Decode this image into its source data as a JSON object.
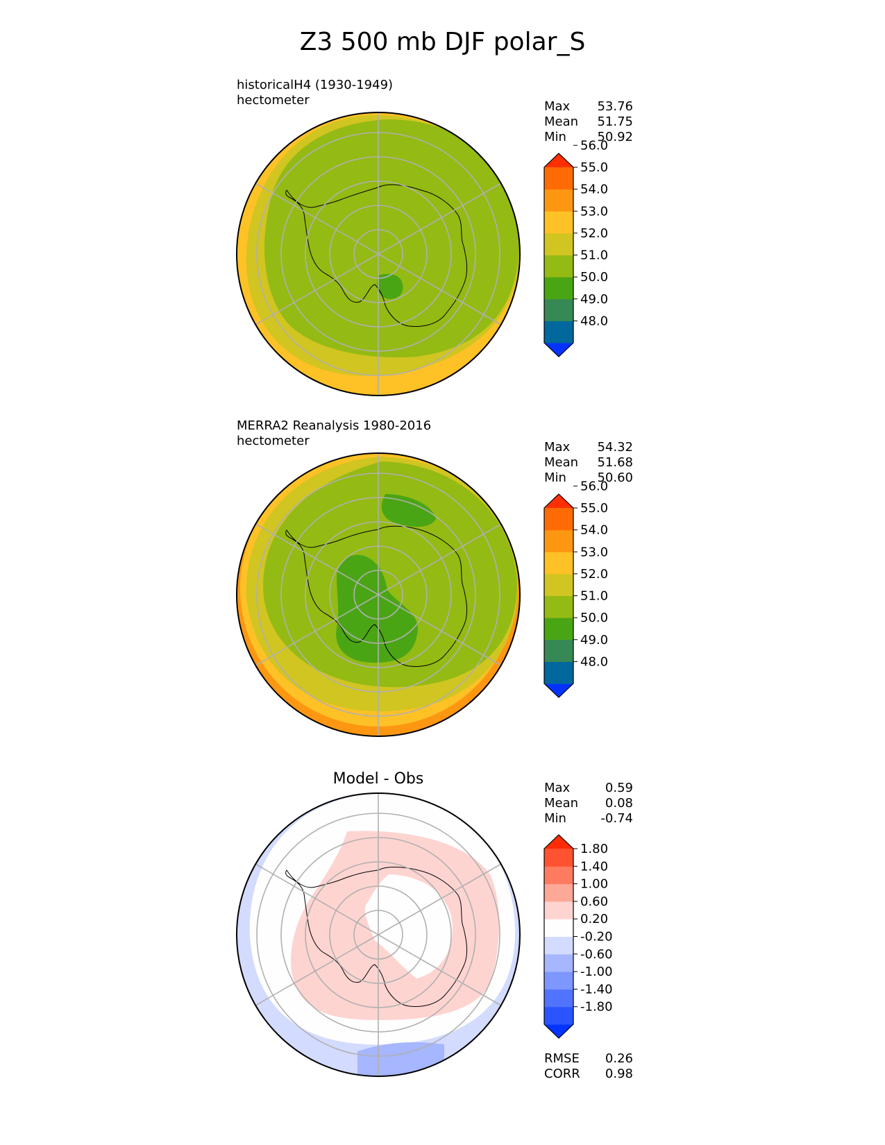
{
  "figure_title": "Z3 500 mb DJF polar_S",
  "panels": [
    {
      "id": "test",
      "title_lines": [
        "historicalH4 (1930-1949)",
        "hectometer"
      ],
      "stats": [
        {
          "label": "Max",
          "value": "53.76"
        },
        {
          "label": "Mean",
          "value": "51.75"
        },
        {
          "label": "Min",
          "value": "50.92"
        }
      ]
    },
    {
      "id": "ref",
      "title_lines": [
        "MERRA2 Reanalysis 1980-2016",
        "hectometer"
      ],
      "stats": [
        {
          "label": "Max",
          "value": "54.32"
        },
        {
          "label": "Mean",
          "value": "51.68"
        },
        {
          "label": "Min",
          "value": "50.60"
        }
      ]
    },
    {
      "id": "diff",
      "center_title": "Model - Obs",
      "stats": [
        {
          "label": "Max",
          "value": "0.59"
        },
        {
          "label": "Mean",
          "value": "0.08"
        },
        {
          "label": "Min",
          "value": "-0.74"
        }
      ],
      "metrics": [
        {
          "label": "RMSE",
          "value": "0.26"
        },
        {
          "label": "CORR",
          "value": "0.98"
        }
      ]
    }
  ],
  "chart_data": [
    {
      "type": "heatmap",
      "title": "historicalH4 (1930-1949)",
      "units": "hectometer",
      "projection": "south polar stereographic",
      "colorbar": {
        "ticks": [
          "48.0",
          "49.0",
          "50.0",
          "51.0",
          "52.0",
          "53.0",
          "54.0",
          "55.0",
          "56.0"
        ],
        "colors": [
          "#0433ff",
          "#00689d",
          "#368855",
          "#4aa515",
          "#94ba14",
          "#d1c521",
          "#fec126",
          "#fd9712",
          "#fe6b04",
          "#ff2f03"
        ],
        "extend": "both"
      },
      "field_levels_center_to_edge": [
        {
          "from": 51,
          "to": 52,
          "note": "small region near pole"
        },
        {
          "from": 52,
          "to": 53
        },
        {
          "from": 53,
          "to": 54
        }
      ],
      "stats": {
        "max": 53.76,
        "mean": 51.75,
        "min": 50.92
      }
    },
    {
      "type": "heatmap",
      "title": "MERRA2 Reanalysis 1980-2016",
      "units": "hectometer",
      "projection": "south polar stereographic",
      "colorbar": {
        "ticks": [
          "48.0",
          "49.0",
          "50.0",
          "51.0",
          "52.0",
          "53.0",
          "54.0",
          "55.0",
          "56.0"
        ],
        "colors": [
          "#0433ff",
          "#00689d",
          "#368855",
          "#4aa515",
          "#94ba14",
          "#d1c521",
          "#fec126",
          "#fd9712",
          "#fe6b04",
          "#ff2f03"
        ],
        "extend": "both"
      },
      "field_levels_center_to_edge": [
        {
          "from": 51,
          "to": 52
        },
        {
          "from": 52,
          "to": 53
        },
        {
          "from": 53,
          "to": 54
        },
        {
          "from": 54,
          "to": 55
        }
      ],
      "stats": {
        "max": 54.32,
        "mean": 51.68,
        "min": 50.6
      }
    },
    {
      "type": "heatmap",
      "title": "Model - Obs",
      "projection": "south polar stereographic",
      "colorbar": {
        "ticks": [
          "-1.80",
          "-1.40",
          "-1.00",
          "-0.60",
          "-0.20",
          "0.20",
          "0.60",
          "1.00",
          "1.40",
          "1.80"
        ],
        "colors": [
          "#0433ff",
          "#2a54ff",
          "#5174ff",
          "#7d97ff",
          "#a6b6ff",
          "#d3dbfe",
          "#fefefe",
          "#fed4d1",
          "#fea897",
          "#fe7b60",
          "#fe5230",
          "#ff2b05"
        ],
        "extend": "both"
      },
      "field_levels_center_to_edge": [
        {
          "from": -0.2,
          "to": 0.2
        },
        {
          "from": 0.2,
          "to": 0.6
        },
        {
          "from": -0.2,
          "to": 0.2
        },
        {
          "from": -0.6,
          "to": -0.2
        },
        {
          "from": -1.0,
          "to": -0.6
        }
      ],
      "stats": {
        "max": 0.59,
        "mean": 0.08,
        "min": -0.74,
        "rmse": 0.26,
        "corr": 0.98
      }
    }
  ]
}
